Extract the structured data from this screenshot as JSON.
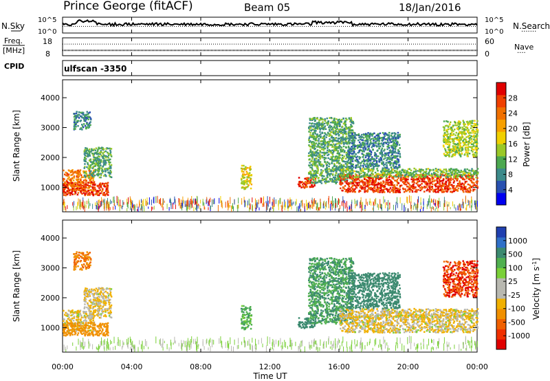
{
  "header": {
    "station": "Prince George (fitACF)",
    "beam": "Beam 05",
    "date": "18/Jan/2016"
  },
  "noise_panel": {
    "left_label": "N.Sky",
    "right_label": "N.Search",
    "right_marker": "·······",
    "ticks_top": "10^5",
    "ticks_bottom": "10^0",
    "search_level": 0.42,
    "sky_base_level": 0.55
  },
  "freq_panel": {
    "left_label_1": "Freq.",
    "left_label_2": "[MHz]",
    "left_tick_top": "18",
    "left_tick_bottom": "8",
    "right_label": "Nave",
    "right_marker": "····",
    "right_tick_top": "60",
    "right_tick_bottom": "0",
    "freq_level": 0.3,
    "nave_level": 0.65
  },
  "cpid_panel": {
    "label": "CPID",
    "program": "ulfscan  -3350"
  },
  "axes": {
    "xlabel": "Time UT",
    "xticks": [
      "00:00",
      "04:00",
      "08:00",
      "12:00",
      "16:00",
      "20:00",
      "00:00"
    ],
    "xlim_hours": [
      0,
      24
    ],
    "ylabel": "Slant Range [km]",
    "yticks": [
      "1000",
      "2000",
      "3000",
      "4000"
    ],
    "ylim_km": [
      180,
      4600
    ]
  },
  "power_colorbar": {
    "label": "Power [dB]",
    "ticks": [
      "4",
      "8",
      "12",
      "16",
      "20",
      "24",
      "28"
    ],
    "colors": [
      "#0000f0",
      "#2850b0",
      "#3c8a8a",
      "#4ca850",
      "#9ac828",
      "#f0d000",
      "#f7a000",
      "#f07000",
      "#f04000",
      "#e00000"
    ]
  },
  "velocity_colorbar": {
    "label": "Velocity [m s^-1]",
    "ticks": [
      "1000",
      "500",
      "100",
      "25",
      "-25",
      "-100",
      "-500",
      "-1000"
    ],
    "colors": [
      "#2040b0",
      "#3070c8",
      "#3c8a70",
      "#50b050",
      "#7ad038",
      "#b8b8b0",
      "#b8b8b0",
      "#f0b000",
      "#f09000",
      "#f06000",
      "#f03000",
      "#e00000"
    ]
  },
  "chart_data": {
    "type": "heatmap",
    "title": "Prince George (fitACF)   Beam 05   18/Jan/2016",
    "xlabel": "Time UT",
    "ylabel": "Slant Range [km]",
    "x_range_hours": [
      0,
      24
    ],
    "y_range_km": [
      180,
      4600
    ],
    "panels": [
      {
        "name": "Power [dB]",
        "regions": [
          {
            "t": [
              0.0,
              1.8
            ],
            "r": [
              850,
              1550
            ],
            "power_db": 24,
            "velocity_ms": -25
          },
          {
            "t": [
              0.0,
              2.6
            ],
            "r": [
              700,
              1150
            ],
            "power_db": 28,
            "velocity_ms": -200
          },
          {
            "t": [
              1.2,
              2.8
            ],
            "r": [
              1300,
              2300
            ],
            "power_db": 12,
            "velocity_ms": -25
          },
          {
            "t": [
              0.6,
              1.6
            ],
            "r": [
              2900,
              3500
            ],
            "power_db": 10,
            "velocity_ms": -300
          },
          {
            "t": [
              10.3,
              10.9
            ],
            "r": [
              900,
              1700
            ],
            "power_db": 18,
            "velocity_ms": 100
          },
          {
            "t": [
              13.6,
              14.6
            ],
            "r": [
              950,
              1300
            ],
            "power_db": 28,
            "velocity_ms": 300
          },
          {
            "t": [
              14.2,
              16.8
            ],
            "r": [
              1100,
              3300
            ],
            "power_db": 12,
            "velocity_ms": 150
          },
          {
            "t": [
              16.0,
              24.0
            ],
            "r": [
              800,
              1400
            ],
            "power_db": 28,
            "velocity_ms": -25
          },
          {
            "t": [
              16.0,
              24.0
            ],
            "r": [
              1300,
              1600
            ],
            "power_db": 14,
            "velocity_ms": -25
          },
          {
            "t": [
              16.5,
              19.5
            ],
            "r": [
              1600,
              2800
            ],
            "power_db": 10,
            "velocity_ms": 300
          },
          {
            "t": [
              22.0,
              24.0
            ],
            "r": [
              2000,
              3200
            ],
            "power_db": 16,
            "velocity_ms": -600
          },
          {
            "t": [
              0.0,
              24.0
            ],
            "r": [
              180,
              500
            ],
            "power_db": 8,
            "velocity_ms": 25
          }
        ]
      },
      {
        "name": "Velocity [m s^-1]",
        "note": "Same regions as power panel, colored by velocity_ms"
      }
    ]
  }
}
